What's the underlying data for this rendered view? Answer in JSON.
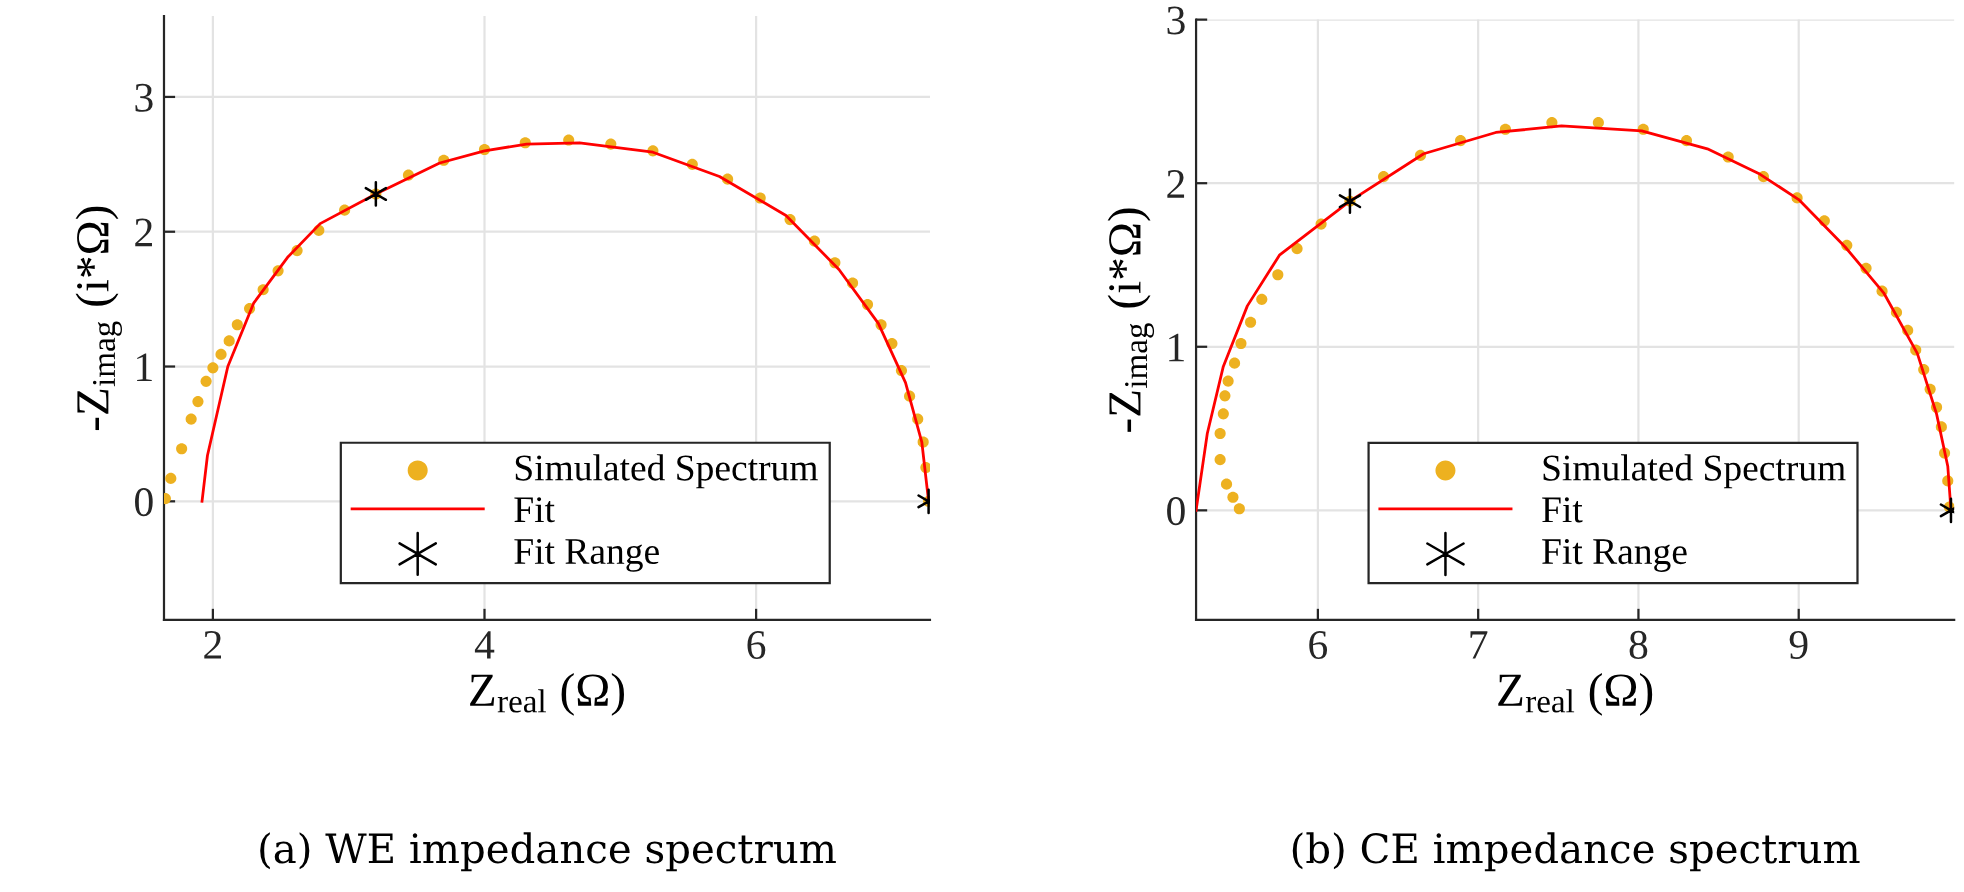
{
  "chart_data": [
    {
      "type": "scatter",
      "xlabel": "Z$_{real}$ (Ω)",
      "ylabel": "-Z$_{imag}$ (i*Ω)",
      "annotations": [
        "(a) WE impedance spectrum"
      ],
      "xlim": [
        1.64,
        7.28
      ],
      "ylim": [
        -0.88,
        3.6
      ],
      "xticks": [
        2,
        4,
        6
      ],
      "yticks": [
        0,
        1,
        2,
        3
      ],
      "grid": true,
      "legend": "bottom",
      "series": [
        {
          "name": "Simulated Spectrum",
          "type": "scatter",
          "marker": "circle",
          "color": "#edb120",
          "x": [
            1.65,
            1.69,
            1.77,
            1.84,
            1.89,
            1.95,
            2.0,
            2.06,
            2.12,
            2.18,
            2.27,
            2.37,
            2.48,
            2.62,
            2.78,
            2.97,
            3.2,
            3.44,
            3.7,
            4.0,
            4.3,
            4.62,
            4.93,
            5.24,
            5.53,
            5.79,
            6.03,
            6.25,
            6.43,
            6.58,
            6.71,
            6.82,
            6.92,
            7.0,
            7.07,
            7.13,
            7.19,
            7.23,
            7.25,
            7.27
          ],
          "values": [
            0.02,
            0.17,
            0.39,
            0.61,
            0.74,
            0.89,
            0.99,
            1.09,
            1.19,
            1.31,
            1.43,
            1.57,
            1.71,
            1.86,
            2.01,
            2.16,
            2.28,
            2.42,
            2.53,
            2.61,
            2.66,
            2.68,
            2.65,
            2.6,
            2.5,
            2.39,
            2.25,
            2.09,
            1.93,
            1.77,
            1.62,
            1.46,
            1.31,
            1.17,
            0.97,
            0.78,
            0.61,
            0.44,
            0.25,
            0
          ]
        },
        {
          "name": "Fit",
          "type": "line",
          "marker": "none",
          "line_style": "solid",
          "color": "#ff0000",
          "x": [
            1.92,
            1.96,
            2.11,
            2.3,
            2.55,
            2.79,
            3.2,
            3.67,
            4.0,
            4.31,
            4.7,
            5.24,
            5.73,
            6.22,
            6.61,
            6.9,
            7.1,
            7.22,
            7.27
          ],
          "values": [
            0,
            0.34,
            1.0,
            1.47,
            1.81,
            2.06,
            2.28,
            2.51,
            2.6,
            2.65,
            2.66,
            2.59,
            2.41,
            2.12,
            1.72,
            1.32,
            0.88,
            0.44,
            0
          ]
        },
        {
          "name": "Fit Range",
          "type": "scatter",
          "marker": "cross",
          "color": "#000000",
          "x": [
            3.2,
            7.27
          ],
          "values": [
            2.28,
            0
          ]
        }
      ]
    },
    {
      "type": "scatter",
      "xlabel": "Z$_{real}$ (Ω)",
      "ylabel": "-Z$_{imag}$ (i*Ω)",
      "annotations": [
        "(b) CE impedance spectrum"
      ],
      "xlim": [
        5.24,
        9.97
      ],
      "ylim": [
        -0.67,
        3
      ],
      "xticks": [
        6,
        7,
        8,
        9
      ],
      "yticks": [
        0,
        1,
        2,
        3
      ],
      "grid": true,
      "legend": "bottom",
      "series": [
        {
          "name": "Simulated Spectrum",
          "type": "scatter",
          "marker": "circle",
          "color": "#edb120",
          "x": [
            5.51,
            5.47,
            5.43,
            5.39,
            5.39,
            5.41,
            5.42,
            5.44,
            5.48,
            5.52,
            5.58,
            5.65,
            5.75,
            5.87,
            6.02,
            6.2,
            6.41,
            6.64,
            6.89,
            7.17,
            7.46,
            7.75,
            8.03,
            8.3,
            8.56,
            8.78,
            8.99,
            9.16,
            9.3,
            9.42,
            9.52,
            9.61,
            9.68,
            9.73,
            9.78,
            9.82,
            9.86,
            9.89,
            9.91,
            9.93,
            9.94
          ],
          "values": [
            0.01,
            0.08,
            0.16,
            0.31,
            0.47,
            0.59,
            0.7,
            0.79,
            0.9,
            1.02,
            1.15,
            1.29,
            1.44,
            1.6,
            1.75,
            1.89,
            2.04,
            2.17,
            2.26,
            2.33,
            2.37,
            2.37,
            2.33,
            2.26,
            2.16,
            2.04,
            1.91,
            1.77,
            1.62,
            1.48,
            1.34,
            1.21,
            1.1,
            0.98,
            0.86,
            0.74,
            0.63,
            0.51,
            0.35,
            0.18,
            0.02
          ]
        },
        {
          "name": "Fit",
          "type": "line",
          "marker": "none",
          "line_style": "solid",
          "color": "#ff0000",
          "x": [
            5.24,
            5.31,
            5.41,
            5.56,
            5.76,
            6.2,
            6.66,
            7.11,
            7.52,
            8.02,
            8.43,
            8.75,
            9.0,
            9.29,
            9.53,
            9.74,
            9.86,
            9.93,
            9.95
          ],
          "values": [
            0,
            0.47,
            0.88,
            1.25,
            1.56,
            1.89,
            2.18,
            2.31,
            2.35,
            2.32,
            2.21,
            2.06,
            1.9,
            1.61,
            1.33,
            0.96,
            0.59,
            0.27,
            0
          ]
        },
        {
          "name": "Fit Range",
          "type": "scatter",
          "marker": "cross",
          "color": "#000000",
          "x": [
            6.2,
            9.95
          ],
          "values": [
            1.89,
            0
          ]
        }
      ]
    }
  ]
}
